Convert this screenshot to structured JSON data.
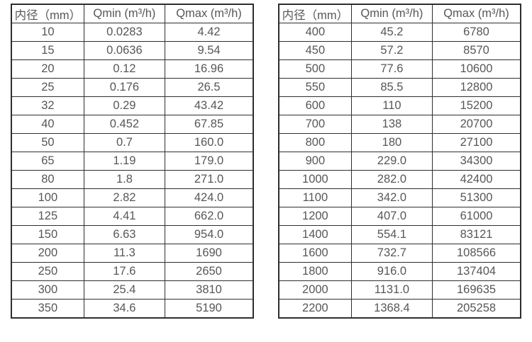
{
  "colors": {
    "background": "#ffffff",
    "table_border": "#2e2e2e",
    "text": "#575757"
  },
  "tables": [
    {
      "name": "flow-table-small-diameters",
      "headers": [
        "内径（mm）",
        "Qmin (m³/h)",
        "Qmax (m³/h)"
      ],
      "rows": [
        [
          "10",
          "0.0283",
          "4.42"
        ],
        [
          "15",
          "0.0636",
          "9.54"
        ],
        [
          "20",
          "0.12",
          "16.96"
        ],
        [
          "25",
          "0.176",
          "26.5"
        ],
        [
          "32",
          "0.29",
          "43.42"
        ],
        [
          "40",
          "0.452",
          "67.85"
        ],
        [
          "50",
          "0.7",
          "160.0"
        ],
        [
          "65",
          "1.19",
          "179.0"
        ],
        [
          "80",
          "1.8",
          "271.0"
        ],
        [
          "100",
          "2.82",
          "424.0"
        ],
        [
          "125",
          "4.41",
          "662.0"
        ],
        [
          "150",
          "6.63",
          "954.0"
        ],
        [
          "200",
          "11.3",
          "1690"
        ],
        [
          "250",
          "17.6",
          "2650"
        ],
        [
          "300",
          "25.4",
          "3810"
        ],
        [
          "350",
          "34.6",
          "5190"
        ]
      ]
    },
    {
      "name": "flow-table-large-diameters",
      "headers": [
        "内径（mm）",
        "Qmin (m³/h)",
        "Qmax (m³/h)"
      ],
      "rows": [
        [
          "400",
          "45.2",
          "6780"
        ],
        [
          "450",
          "57.2",
          "8570"
        ],
        [
          "500",
          "77.6",
          "10600"
        ],
        [
          "550",
          "85.5",
          "12800"
        ],
        [
          "600",
          "110",
          "15200"
        ],
        [
          "700",
          "138",
          "20700"
        ],
        [
          "800",
          "180",
          "27100"
        ],
        [
          "900",
          "229.0",
          "34300"
        ],
        [
          "1000",
          "282.0",
          "42400"
        ],
        [
          "1100",
          "342.0",
          "51300"
        ],
        [
          "1200",
          "407.0",
          "61000"
        ],
        [
          "1400",
          "554.1",
          "83121"
        ],
        [
          "1600",
          "732.7",
          "108566"
        ],
        [
          "1800",
          "916.0",
          "137404"
        ],
        [
          "2000",
          "1131.0",
          "169635"
        ],
        [
          "2200",
          "1368.4",
          "205258"
        ]
      ]
    }
  ]
}
